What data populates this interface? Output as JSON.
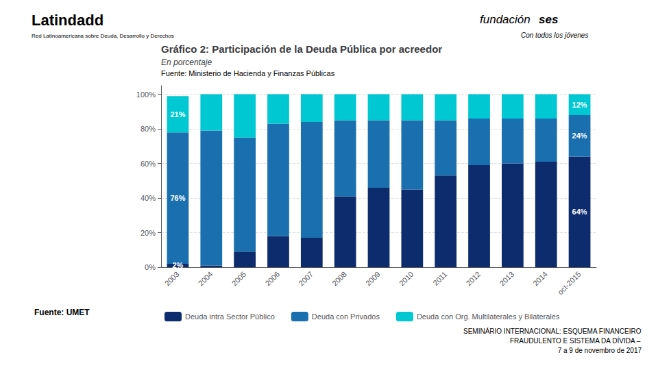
{
  "chart_data": {
    "type": "bar",
    "stacked": true,
    "title": "Gráfico 2: Participación de la Deuda Pública por acreedor",
    "subtitle": "En porcentaje",
    "annotations": [
      "Fuente: Ministerio de Hacienda y Finanzas Públicas",
      "Fuente: UMET",
      "SEMINÁRIO INTERNACIONAL: ESQUEMA FINANCEIRO",
      "FRAUDULENTO E SISTEMA DA DÍVIDA –",
      "7 a 9 de novembro de 2017",
      "Latindadd",
      "Red Latinoamericana sobre Deuda, Desarrollo y Derechos",
      "fundación",
      "ses",
      "Con todos los jóvenes"
    ],
    "categories": [
      "2003",
      "2004",
      "2005",
      "2006",
      "2007",
      "2008",
      "2009",
      "2010",
      "2011",
      "2012",
      "2013",
      "2014",
      "oct-2015"
    ],
    "series": [
      {
        "name": "Deuda intra Sector Público",
        "color": "#0d2c6e",
        "values": [
          2,
          1,
          9,
          18,
          17,
          41,
          46,
          45,
          53,
          59,
          60,
          61,
          64
        ],
        "value_labels": [
          "2%",
          null,
          null,
          null,
          null,
          null,
          null,
          null,
          null,
          null,
          null,
          null,
          "64%"
        ]
      },
      {
        "name": "Deuda con Privados",
        "color": "#1a6faf",
        "values": [
          76,
          78,
          66,
          65,
          67,
          44,
          39,
          40,
          32,
          27,
          26,
          25,
          24
        ],
        "value_labels": [
          "76%",
          null,
          null,
          null,
          null,
          null,
          null,
          null,
          null,
          null,
          null,
          null,
          "24%"
        ]
      },
      {
        "name": "Deuda con Org. Multilaterales y Bilaterales",
        "color": "#00c8d2",
        "values": [
          21,
          21,
          25,
          17,
          16,
          15,
          15,
          15,
          15,
          14,
          14,
          14,
          12
        ],
        "value_labels": [
          "21%",
          null,
          null,
          null,
          null,
          null,
          null,
          null,
          null,
          null,
          null,
          null,
          "12%"
        ]
      }
    ],
    "ylim": [
      0,
      105
    ],
    "yticks": [
      {
        "value": 0,
        "label": "0%"
      },
      {
        "value": 20,
        "label": "20%"
      },
      {
        "value": 40,
        "label": "40%"
      },
      {
        "value": 60,
        "label": "60%"
      },
      {
        "value": 80,
        "label": "80%"
      },
      {
        "value": 100,
        "label": "100%"
      }
    ],
    "grid": true,
    "legend": "bottom"
  }
}
